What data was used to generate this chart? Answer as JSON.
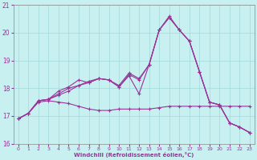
{
  "xlabel": "Windchill (Refroidissement éolien,°C)",
  "bg_color": "#c8f0f0",
  "grid_color": "#a0d8d8",
  "line_color": "#993399",
  "xlim": [
    -0.5,
    23.5
  ],
  "ylim": [
    16.0,
    21.0
  ],
  "yticks": [
    16,
    17,
    18,
    19,
    20,
    21
  ],
  "xticks": [
    0,
    1,
    2,
    3,
    4,
    5,
    6,
    7,
    8,
    9,
    10,
    11,
    12,
    13,
    14,
    15,
    16,
    17,
    18,
    19,
    20,
    21,
    22,
    23
  ],
  "series": {
    "s1_x": [
      0,
      1,
      2,
      3,
      4,
      5,
      6,
      7,
      8,
      9,
      10,
      11,
      12,
      13,
      14,
      15,
      16,
      17,
      18,
      19,
      20,
      21,
      22,
      23
    ],
    "s1_y": [
      16.9,
      17.1,
      17.5,
      17.55,
      17.5,
      17.45,
      17.35,
      17.25,
      17.2,
      17.2,
      17.25,
      17.25,
      17.25,
      17.25,
      17.3,
      17.35,
      17.35,
      17.35,
      17.35,
      17.35,
      17.35,
      17.35,
      17.35,
      17.35
    ],
    "s2_x": [
      0,
      1,
      2,
      3,
      4,
      5,
      6,
      7,
      8,
      9,
      10,
      11,
      12,
      13,
      14,
      15,
      16,
      17,
      18,
      19,
      20,
      21,
      22,
      23
    ],
    "s2_y": [
      16.9,
      17.1,
      17.55,
      17.6,
      17.75,
      17.9,
      18.1,
      18.2,
      18.35,
      18.3,
      18.05,
      18.45,
      17.8,
      18.85,
      20.1,
      20.55,
      20.1,
      19.7,
      18.6,
      17.5,
      17.4,
      16.75,
      16.6,
      16.4
    ],
    "s3_x": [
      0,
      1,
      2,
      3,
      4,
      5,
      6,
      7,
      8,
      9,
      10,
      11,
      12,
      13,
      14,
      15,
      16,
      17,
      18,
      19,
      20,
      21,
      22,
      23
    ],
    "s3_y": [
      16.9,
      17.1,
      17.55,
      17.6,
      17.8,
      18.0,
      18.1,
      18.25,
      18.35,
      18.3,
      18.05,
      18.5,
      18.3,
      18.85,
      20.1,
      20.55,
      20.1,
      19.7,
      18.6,
      17.5,
      17.4,
      16.75,
      16.6,
      16.4
    ],
    "s4_x": [
      0,
      1,
      2,
      3,
      4,
      5,
      6,
      7,
      8,
      9,
      10,
      11,
      12,
      13,
      14,
      15,
      16,
      17,
      18,
      19,
      20,
      21,
      22,
      23
    ],
    "s4_y": [
      16.9,
      17.1,
      17.55,
      17.6,
      17.9,
      18.05,
      18.3,
      18.2,
      18.35,
      18.3,
      18.1,
      18.55,
      18.35,
      18.85,
      20.1,
      20.6,
      20.1,
      19.7,
      18.6,
      17.5,
      17.4,
      16.75,
      16.6,
      16.4
    ]
  }
}
